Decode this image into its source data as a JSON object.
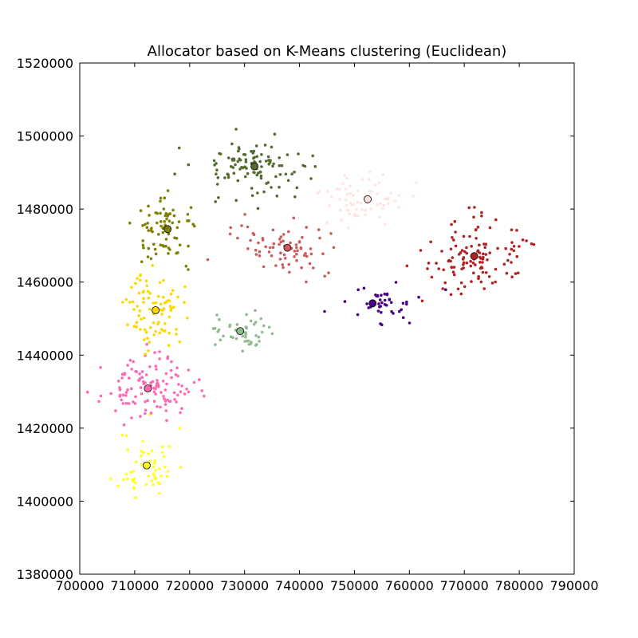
{
  "chart_data": {
    "type": "scatter",
    "title": "Allocator based on K-Means clustering (Euclidean)",
    "xlabel": "",
    "ylabel": "",
    "xlim": [
      700000,
      790000
    ],
    "ylim": [
      1380000,
      1520000
    ],
    "xticks": [
      700000,
      710000,
      720000,
      730000,
      740000,
      750000,
      760000,
      770000,
      780000,
      790000
    ],
    "yticks": [
      1380000,
      1400000,
      1420000,
      1440000,
      1460000,
      1480000,
      1500000,
      1520000
    ],
    "xtick_labels": [
      "700000",
      "710000",
      "720000",
      "730000",
      "740000",
      "750000",
      "760000",
      "770000",
      "780000",
      "790000"
    ],
    "ytick_labels": [
      "1380000",
      "1400000",
      "1420000",
      "1440000",
      "1460000",
      "1480000",
      "1500000",
      "1520000"
    ],
    "grid": false,
    "legend": "none",
    "clusters": [
      {
        "color": "#ffff22",
        "centroid": [
          712200,
          1409800
        ],
        "spread": [
          3700,
          7300
        ],
        "count": 55,
        "seed": 11
      },
      {
        "color": "#ff69b4",
        "centroid": [
          712400,
          1430900
        ],
        "spread": [
          5800,
          5600
        ],
        "count": 120,
        "seed": 23
      },
      {
        "color": "#ffd700",
        "centroid": [
          713800,
          1452300
        ],
        "spread": [
          3600,
          7200
        ],
        "count": 85,
        "seed": 37
      },
      {
        "color": "#808000",
        "centroid": [
          716000,
          1474500
        ],
        "spread": [
          4200,
          6200
        ],
        "count": 75,
        "seed": 41
      },
      {
        "color": "#556b2f",
        "centroid": [
          731800,
          1491700
        ],
        "spread": [
          7800,
          5800
        ],
        "count": 110,
        "seed": 53
      },
      {
        "color": "#8fbc8f",
        "centroid": [
          729200,
          1446600
        ],
        "spread": [
          4500,
          4300
        ],
        "count": 45,
        "seed": 61
      },
      {
        "color": "#cd5c5c",
        "centroid": [
          737800,
          1469400
        ],
        "spread": [
          7000,
          5200
        ],
        "count": 75,
        "seed": 73
      },
      {
        "color": "#ffe4e1",
        "centroid": [
          752400,
          1482700
        ],
        "spread": [
          6000,
          5500
        ],
        "count": 70,
        "seed": 89
      },
      {
        "color": "#4b0082",
        "centroid": [
          753300,
          1454200
        ],
        "spread": [
          6200,
          4000
        ],
        "count": 45,
        "seed": 97
      },
      {
        "color": "#b22222",
        "centroid": [
          771800,
          1467100
        ],
        "spread": [
          6500,
          7200
        ],
        "count": 120,
        "seed": 103
      }
    ]
  }
}
